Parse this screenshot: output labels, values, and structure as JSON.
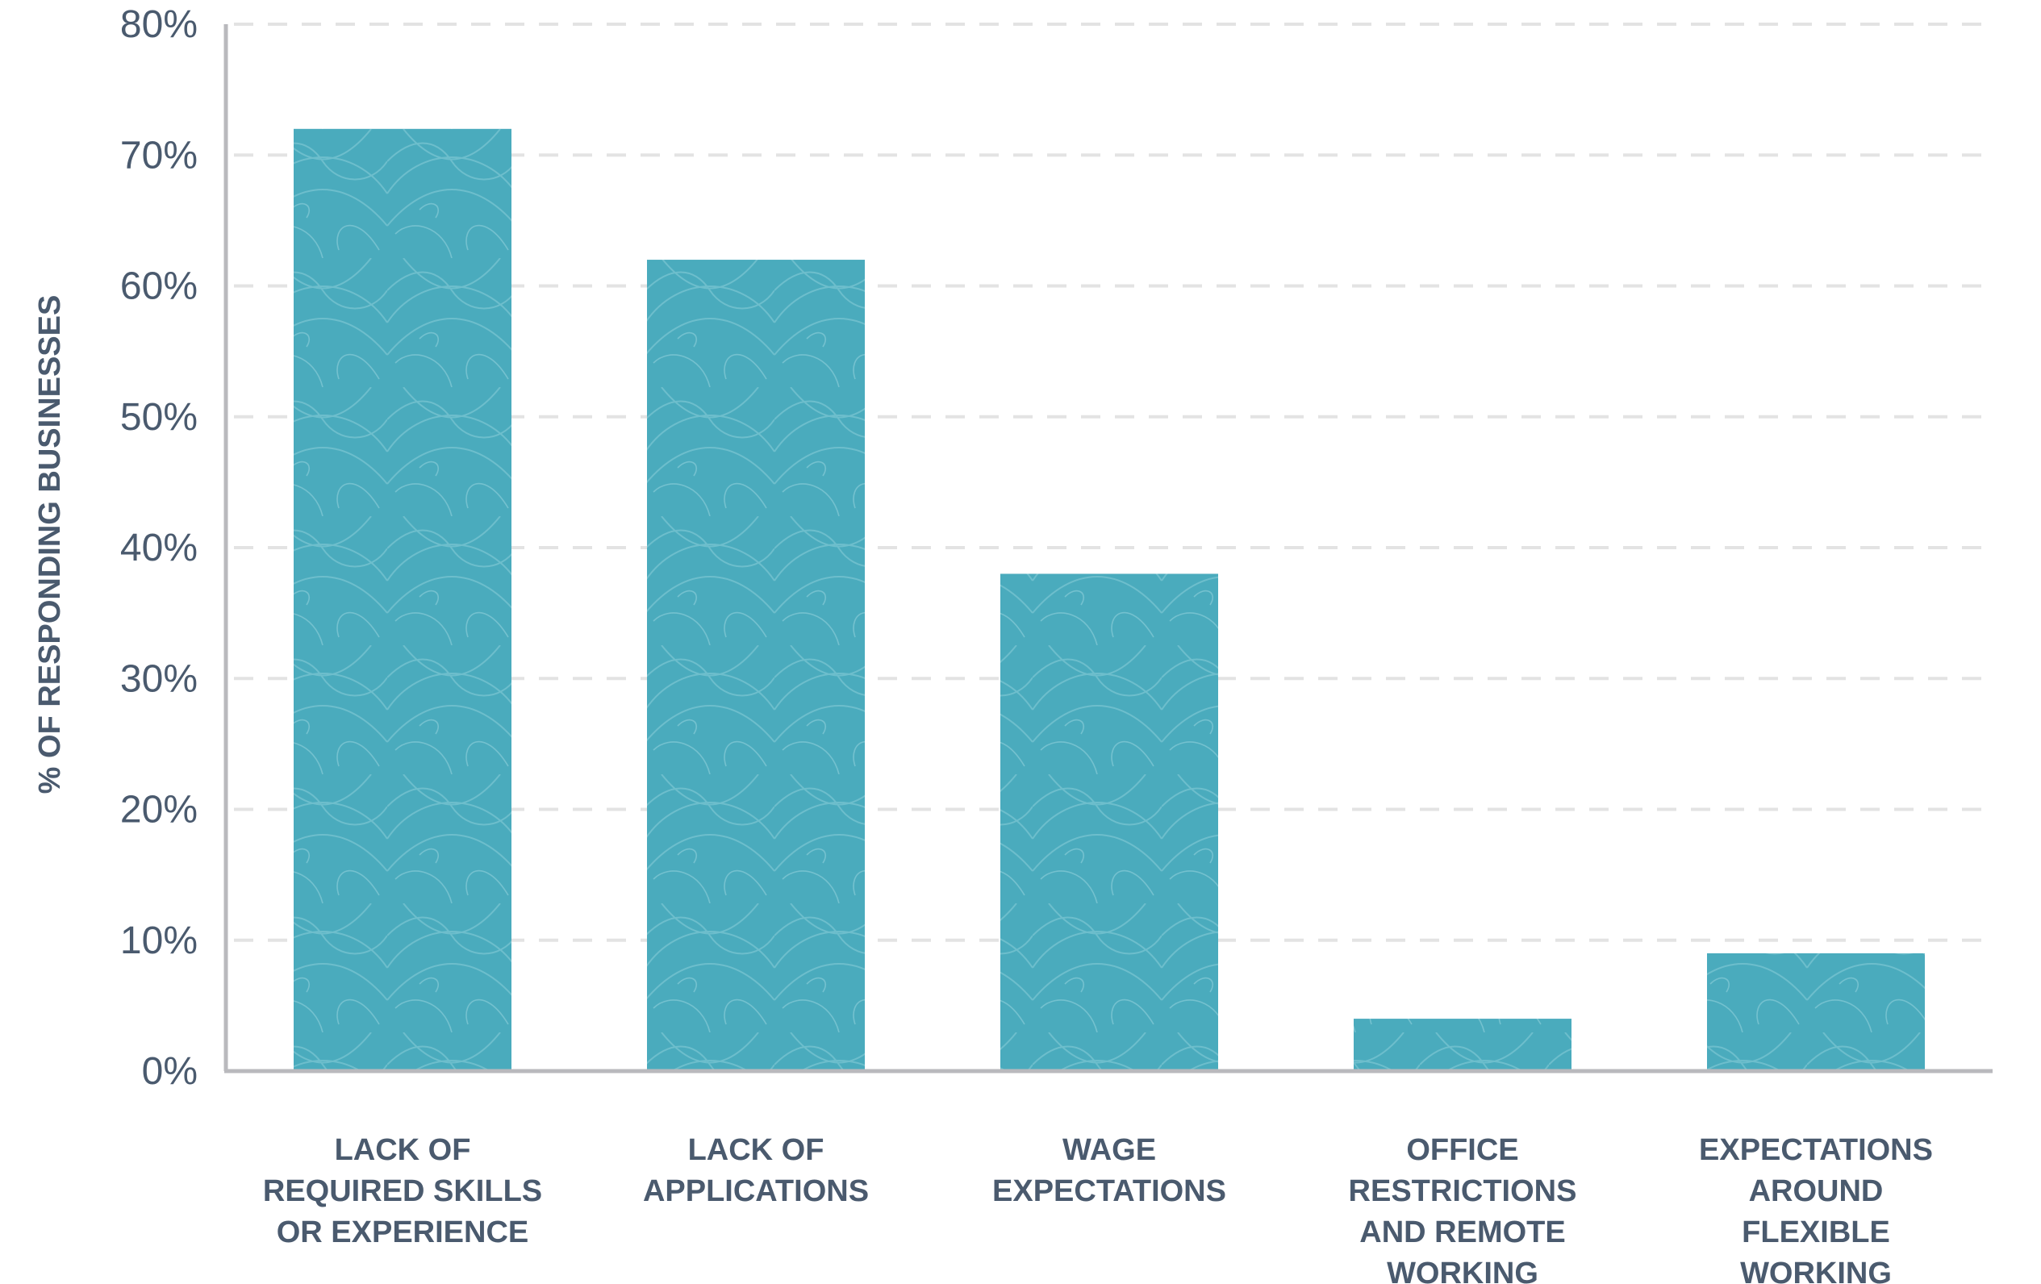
{
  "chart_data": {
    "type": "bar",
    "ylabel": "% OF RESPONDING BUSINESSES",
    "xlabel": "",
    "ylim": [
      0,
      80
    ],
    "yticks": [
      "0%",
      "10%",
      "20%",
      "30%",
      "40%",
      "50%",
      "60%",
      "70%",
      "80%"
    ],
    "grid": "horizontal-dashed",
    "bar_color": "#4aabbd",
    "categories": [
      [
        "LACK OF",
        "REQUIRED SKILLS",
        "OR EXPERIENCE"
      ],
      [
        "LACK OF",
        "APPLICATIONS"
      ],
      [
        "WAGE",
        "EXPECTATIONS"
      ],
      [
        "OFFICE",
        "RESTRICTIONS",
        "AND REMOTE",
        "WORKING"
      ],
      [
        "EXPECTATIONS",
        "AROUND",
        "FLEXIBLE",
        "WORKING"
      ]
    ],
    "values": [
      72,
      62,
      38,
      4,
      9
    ]
  }
}
